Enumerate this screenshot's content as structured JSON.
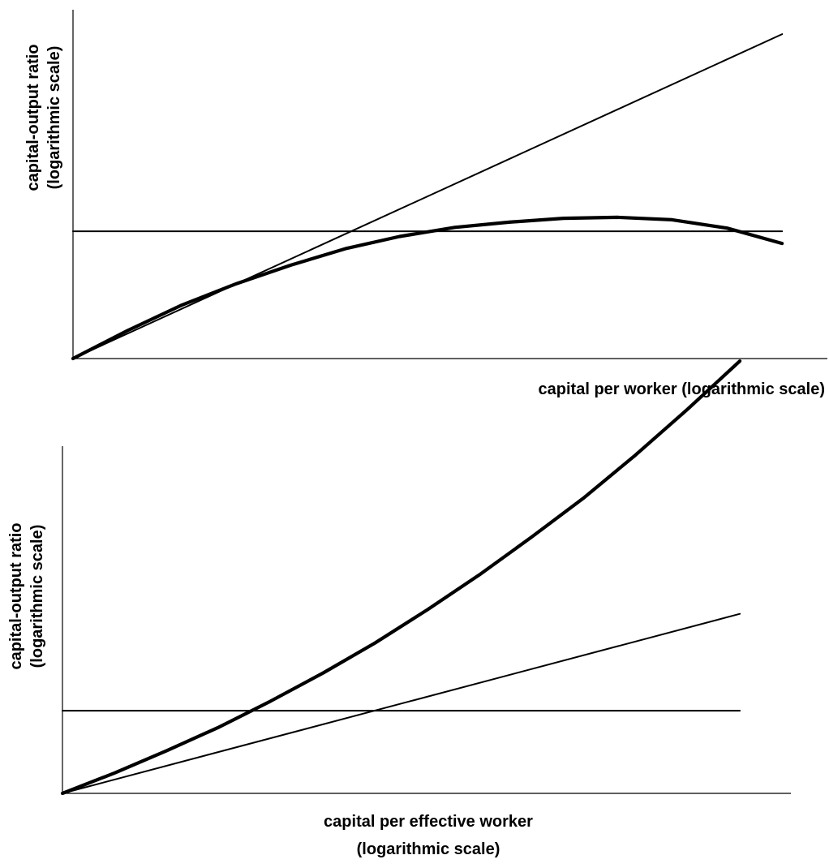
{
  "colors": {
    "line": "#000000",
    "background": "#ffffff"
  },
  "chart_data": [
    {
      "type": "line",
      "title": "",
      "xlabel": [
        "capital per worker (logarithmic scale)"
      ],
      "ylabel": [
        "capital-output ratio",
        "(logarithmic scale)"
      ],
      "xscale": "log",
      "yscale": "log",
      "xlim": [
        0,
        100
      ],
      "ylim": [
        0,
        100
      ],
      "grid": false,
      "legend": "none",
      "show_ticks": false,
      "series": [
        {
          "style": "thin",
          "x": [
            0,
            94
          ],
          "y": [
            0,
            93
          ]
        },
        {
          "style": "thin",
          "x": [
            0,
            94
          ],
          "y": [
            36.5,
            36.5
          ]
        },
        {
          "style": "thick",
          "x": [
            0,
            7.2,
            14.4,
            21.7,
            28.9,
            36.1,
            43.3,
            50.6,
            57.8,
            65.0,
            72.2,
            79.4,
            86.7,
            94.0
          ],
          "y": [
            0,
            8.0,
            15.3,
            21.5,
            26.8,
            31.5,
            35.0,
            37.6,
            39.1,
            40.2,
            40.5,
            39.8,
            37.4,
            33.0
          ]
        }
      ]
    },
    {
      "type": "line",
      "title": "",
      "xlabel": [
        "capital per effective worker",
        "(logarithmic scale)"
      ],
      "ylabel": [
        "capital-output ratio",
        "(logarithmic scale)"
      ],
      "xscale": "log",
      "yscale": "log",
      "xlim": [
        0,
        100
      ],
      "ylim": [
        0,
        100
      ],
      "grid": false,
      "legend": "none",
      "show_ticks": false,
      "series": [
        {
          "style": "thin",
          "x": [
            0,
            93
          ],
          "y": [
            0,
            51.7
          ]
        },
        {
          "style": "thin",
          "x": [
            0,
            93
          ],
          "y": [
            23.8,
            23.8
          ]
        },
        {
          "style": "thick",
          "x": [
            0,
            7.2,
            14.3,
            21.5,
            28.6,
            35.8,
            42.9,
            50.1,
            57.2,
            64.4,
            71.5,
            78.7,
            85.8,
            93.0
          ],
          "y": [
            0,
            5.9,
            12.3,
            19.1,
            26.6,
            34.7,
            43.3,
            52.9,
            62.9,
            73.8,
            85.0,
            97.5,
            110.6,
            124.5
          ]
        }
      ]
    }
  ]
}
